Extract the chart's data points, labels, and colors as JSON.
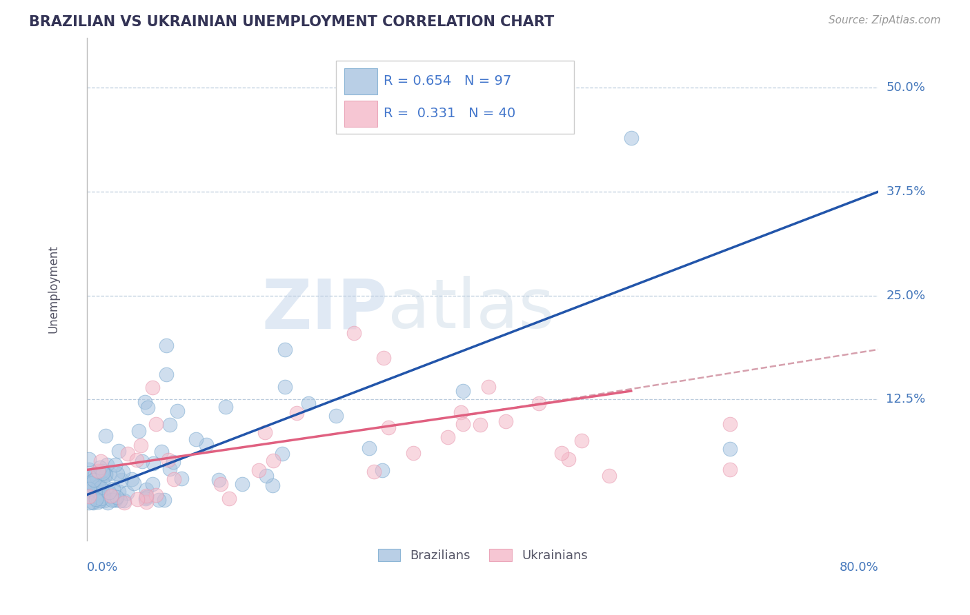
{
  "title": "BRAZILIAN VS UKRAINIAN UNEMPLOYMENT CORRELATION CHART",
  "source": "Source: ZipAtlas.com",
  "ylabel": "Unemployment",
  "xlim": [
    0.0,
    0.8
  ],
  "ylim": [
    -0.045,
    0.56
  ],
  "ytick_positions": [
    0.125,
    0.25,
    0.375,
    0.5
  ],
  "ytick_labels": [
    "12.5%",
    "25.0%",
    "37.5%",
    "50.0%"
  ],
  "blue_fill": "#A8C4E0",
  "blue_edge": "#7AAAD0",
  "pink_fill": "#F4B8C8",
  "pink_edge": "#E899AF",
  "blue_line_color": "#2255AA",
  "pink_line_solid_color": "#E06080",
  "pink_line_dash_color": "#CC8899",
  "r_blue": 0.654,
  "n_blue": 97,
  "r_pink": 0.331,
  "n_pink": 40,
  "legend_label_blue": "Brazilians",
  "legend_label_pink": "Ukrainians",
  "title_color": "#333355",
  "axis_label_color": "#4477BB",
  "text_blue_color": "#4477CC",
  "watermark_color": "#C8DDF0",
  "blue_line": {
    "x0": 0.0,
    "y0": 0.01,
    "x1": 0.8,
    "y1": 0.375
  },
  "pink_solid_line": {
    "x0": 0.0,
    "y0": 0.04,
    "x1": 0.55,
    "y1": 0.135
  },
  "pink_dash_line": {
    "x0": 0.38,
    "y0": 0.105,
    "x1": 0.8,
    "y1": 0.185
  }
}
